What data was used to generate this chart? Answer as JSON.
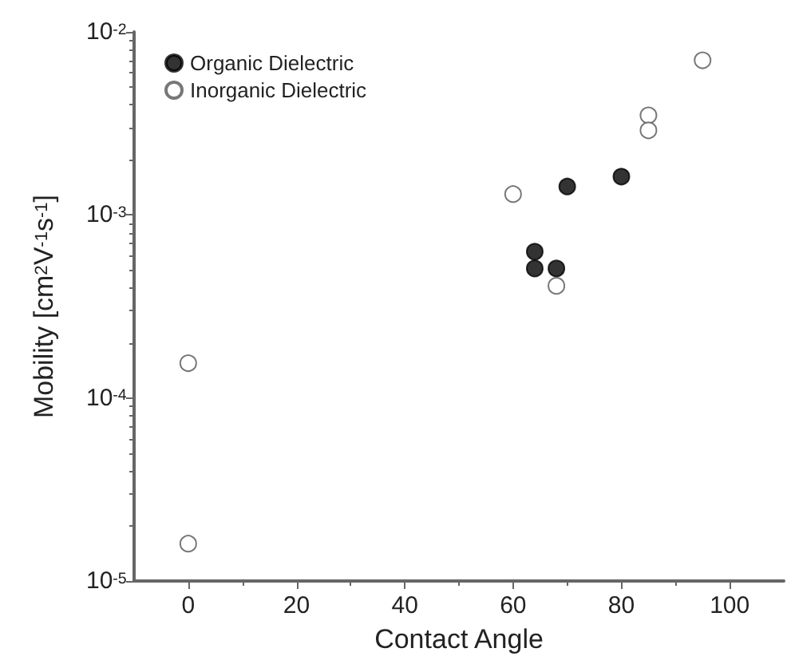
{
  "chart_data": {
    "type": "scatter",
    "xlabel": "Contact Angle",
    "ylabel": "Mobility [cm$^{2}$V$^{-1}$s$^{-1}$]",
    "xlim": [
      -10,
      110
    ],
    "xticks": [
      0,
      20,
      40,
      60,
      80,
      100
    ],
    "ylim": [
      1e-05,
      0.01
    ],
    "yticks": [
      {
        "value": 1e-05,
        "label": "10$^{-5}$"
      },
      {
        "value": 0.0001,
        "label": "10$^{-4}$"
      },
      {
        "value": 0.001,
        "label": "10$^{-3}$"
      },
      {
        "value": 0.01,
        "label": "10$^{-2}$"
      }
    ],
    "log": "y",
    "grid": false,
    "legend": "top left",
    "marker": "circle",
    "series": [
      {
        "name": "Organic Dielectric",
        "color": "#000000",
        "x": [
          64,
          64,
          68,
          70,
          80
        ],
        "values": [
          0.00063,
          0.00051,
          0.00051,
          0.00143,
          0.00162
        ]
      },
      {
        "name": "Inorganic Dielectric",
        "color": "#ffffff",
        "x": [
          0,
          0,
          60,
          68,
          85,
          85,
          95
        ],
        "values": [
          0.000155,
          1.6e-05,
          0.0013,
          0.00041,
          0.0035,
          0.0029,
          0.007
        ]
      }
    ]
  }
}
